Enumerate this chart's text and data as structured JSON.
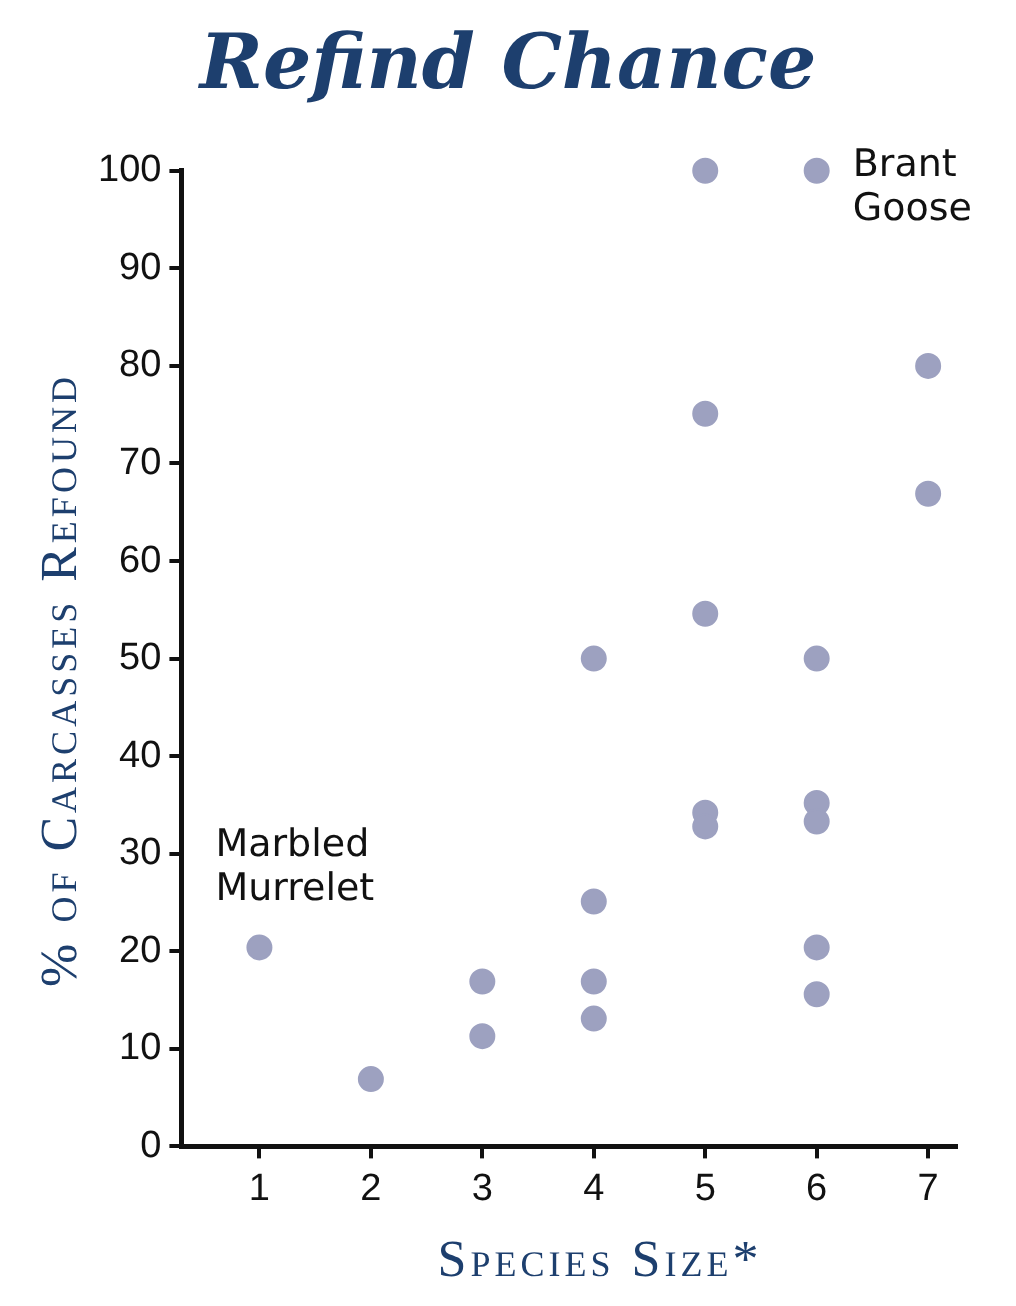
{
  "chart_data": {
    "type": "scatter",
    "title": "Refind Chance",
    "xlabel": "Species Size*",
    "ylabel": "% of Carcasses Refound",
    "x": [
      1,
      2,
      3,
      3,
      4,
      4,
      4,
      4,
      5,
      5,
      5,
      5,
      5,
      6,
      6,
      6,
      6,
      6,
      6,
      7,
      7
    ],
    "series": [
      {
        "color": "#9da1c0",
        "values": [
          20.4,
          6.9,
          16.9,
          11.3,
          50,
          25.1,
          16.9,
          13.1,
          100,
          75.1,
          54.6,
          34.2,
          32.8,
          100,
          50,
          35.2,
          33.3,
          20.4,
          15.6,
          80,
          66.9
        ]
      }
    ],
    "xlim": [
      0.3,
      7.25
    ],
    "xticks": [
      1,
      2,
      3,
      4,
      5,
      6,
      7
    ],
    "ylim": [
      0,
      100
    ],
    "yticks": [
      0,
      10,
      20,
      30,
      40,
      50,
      60,
      70,
      80,
      90,
      100
    ],
    "grid": false,
    "legend": false,
    "marker": "circle",
    "annotations": [
      {
        "text": "Marbled\nMurrelet",
        "x": 1,
        "y": 20.4
      },
      {
        "text": "Brant\nGoose",
        "x": 6,
        "y": 100
      }
    ]
  }
}
